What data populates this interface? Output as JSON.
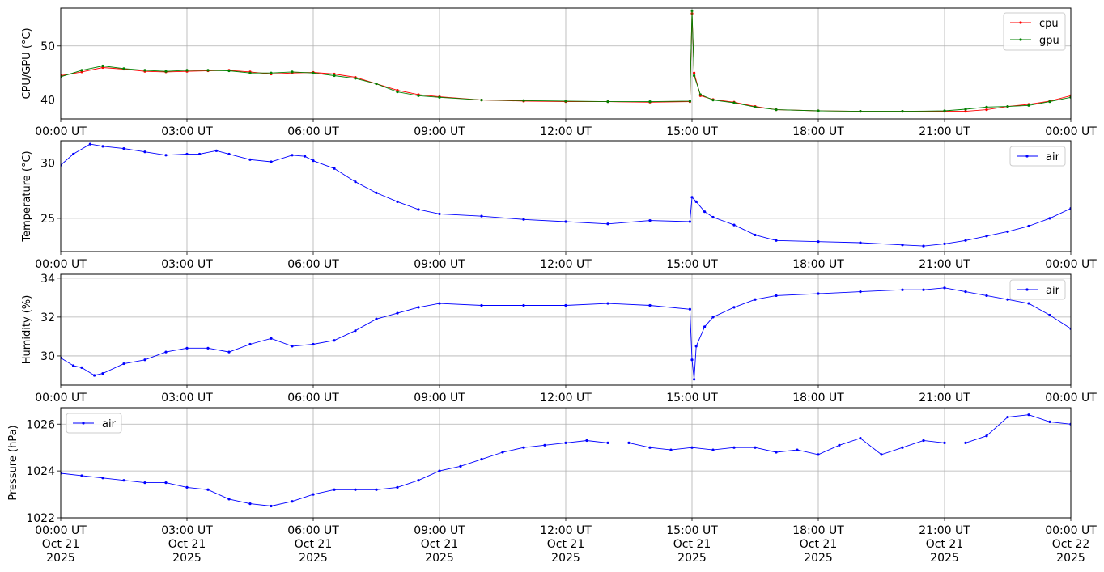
{
  "chart_data": [
    {
      "type": "line",
      "ylabel": "CPU/GPU (°C)",
      "ylim": [
        36.5,
        57
      ],
      "yticks": [
        40,
        50
      ],
      "grid": true,
      "legend": "top-right",
      "x_ticks": [
        "00:00 UT",
        "03:00 UT",
        "06:00 UT",
        "09:00 UT",
        "12:00 UT",
        "15:00 UT",
        "18:00 UT",
        "21:00 UT",
        "00:00 UT"
      ],
      "series": [
        {
          "name": "cpu",
          "color": "#ff0000",
          "x": [
            0,
            0.5,
            1,
            1.5,
            2,
            2.5,
            3,
            3.5,
            4,
            4.5,
            5,
            5.5,
            6,
            6.5,
            7,
            7.5,
            8,
            8.5,
            9,
            10,
            11,
            12,
            13,
            14,
            14.95,
            15.0,
            15.05,
            15.2,
            15.5,
            16,
            16.5,
            17,
            18,
            19,
            20,
            21,
            21.5,
            22,
            22.5,
            23,
            23.5,
            24
          ],
          "y": [
            44.5,
            45.2,
            46.0,
            45.7,
            45.3,
            45.2,
            45.3,
            45.4,
            45.5,
            45.2,
            44.8,
            45.0,
            45.1,
            44.8,
            44.2,
            43.0,
            41.8,
            41.0,
            40.6,
            40.0,
            39.8,
            39.7,
            39.7,
            39.6,
            39.7,
            56.0,
            45.0,
            40.8,
            40.1,
            39.6,
            38.8,
            38.2,
            38.0,
            37.9,
            37.9,
            37.9,
            37.9,
            38.2,
            38.8,
            39.2,
            39.8,
            40.8
          ]
        },
        {
          "name": "gpu",
          "color": "#008000",
          "x": [
            0,
            0.5,
            1,
            1.5,
            2,
            2.5,
            3,
            3.5,
            4,
            4.5,
            5,
            5.5,
            6,
            6.5,
            7,
            7.5,
            8,
            8.5,
            9,
            10,
            11,
            12,
            13,
            14,
            14.95,
            15.0,
            15.05,
            15.2,
            15.5,
            16,
            16.5,
            17,
            18,
            19,
            20,
            21,
            21.5,
            22,
            22.5,
            23,
            23.5,
            24
          ],
          "y": [
            44.3,
            45.5,
            46.3,
            45.8,
            45.5,
            45.3,
            45.5,
            45.5,
            45.4,
            45.0,
            45.0,
            45.2,
            45.0,
            44.5,
            44.0,
            43.0,
            41.5,
            40.8,
            40.5,
            40.0,
            39.9,
            39.8,
            39.7,
            39.7,
            39.8,
            56.5,
            44.5,
            41.0,
            40.0,
            39.5,
            38.7,
            38.2,
            38.0,
            37.9,
            37.9,
            38.0,
            38.3,
            38.7,
            38.8,
            39.0,
            39.7,
            40.5
          ]
        }
      ]
    },
    {
      "type": "line",
      "ylabel": "Temperature (°C)",
      "ylim": [
        22,
        32
      ],
      "yticks": [
        25,
        30
      ],
      "grid": true,
      "legend": "top-right",
      "x_ticks": [
        "00:00 UT",
        "03:00 UT",
        "06:00 UT",
        "09:00 UT",
        "12:00 UT",
        "15:00 UT",
        "18:00 UT",
        "21:00 UT",
        "00:00 UT"
      ],
      "series": [
        {
          "name": "air",
          "color": "#0000ff",
          "x": [
            0,
            0.3,
            0.7,
            1,
            1.5,
            2,
            2.5,
            3,
            3.3,
            3.7,
            4,
            4.5,
            5,
            5.5,
            5.8,
            6,
            6.5,
            7,
            7.5,
            8,
            8.5,
            9,
            10,
            11,
            12,
            13,
            14,
            14.95,
            15.0,
            15.1,
            15.3,
            15.5,
            16,
            16.5,
            17,
            18,
            19,
            20,
            20.5,
            21,
            21.5,
            22,
            22.5,
            23,
            23.5,
            24
          ],
          "y": [
            29.8,
            30.8,
            31.7,
            31.5,
            31.3,
            31.0,
            30.7,
            30.8,
            30.8,
            31.1,
            30.8,
            30.3,
            30.1,
            30.7,
            30.6,
            30.2,
            29.5,
            28.3,
            27.3,
            26.5,
            25.8,
            25.4,
            25.2,
            24.9,
            24.7,
            24.5,
            24.8,
            24.7,
            26.9,
            26.5,
            25.6,
            25.1,
            24.4,
            23.5,
            23.0,
            22.9,
            22.8,
            22.6,
            22.5,
            22.7,
            23.0,
            23.4,
            23.8,
            24.3,
            25.0,
            25.9
          ]
        }
      ]
    },
    {
      "type": "line",
      "ylabel": "Humidity (%)",
      "ylim": [
        28.5,
        34.2
      ],
      "yticks": [
        30,
        32,
        34
      ],
      "grid": true,
      "legend": "top-right",
      "x_ticks": [
        "00:00 UT",
        "03:00 UT",
        "06:00 UT",
        "09:00 UT",
        "12:00 UT",
        "15:00 UT",
        "18:00 UT",
        "21:00 UT",
        "00:00 UT"
      ],
      "series": [
        {
          "name": "air",
          "color": "#0000ff",
          "x": [
            0,
            0.3,
            0.5,
            0.8,
            1,
            1.5,
            2,
            2.5,
            3,
            3.5,
            4,
            4.5,
            5,
            5.5,
            6,
            6.5,
            7,
            7.5,
            8,
            8.5,
            9,
            10,
            11,
            12,
            13,
            14,
            14.95,
            15.0,
            15.05,
            15.1,
            15.3,
            15.5,
            16,
            16.5,
            17,
            18,
            19,
            20,
            20.5,
            21,
            21.5,
            22,
            22.5,
            23,
            23.5,
            24
          ],
          "y": [
            29.9,
            29.5,
            29.4,
            29.0,
            29.1,
            29.6,
            29.8,
            30.2,
            30.4,
            30.4,
            30.2,
            30.6,
            30.9,
            30.5,
            30.6,
            30.8,
            31.3,
            31.9,
            32.2,
            32.5,
            32.7,
            32.6,
            32.6,
            32.6,
            32.7,
            32.6,
            32.4,
            29.8,
            28.8,
            30.5,
            31.5,
            32.0,
            32.5,
            32.9,
            33.1,
            33.2,
            33.3,
            33.4,
            33.4,
            33.5,
            33.3,
            33.1,
            32.9,
            32.7,
            32.1,
            31.4
          ]
        }
      ]
    },
    {
      "type": "line",
      "ylabel": "Pressure (hPa)",
      "ylim": [
        1022,
        1026.7
      ],
      "yticks": [
        1022,
        1024,
        1026
      ],
      "grid": true,
      "legend": "top-left",
      "x_ticks": [
        "00:00 UT\nOct 21\n2025",
        "03:00 UT\nOct 21\n2025",
        "06:00 UT\nOct 21\n2025",
        "09:00 UT\nOct 21\n2025",
        "12:00 UT\nOct 21\n2025",
        "15:00 UT\nOct 21\n2025",
        "18:00 UT\nOct 21\n2025",
        "21:00 UT\nOct 21\n2025",
        "00:00 UT\nOct 22\n2025"
      ],
      "series": [
        {
          "name": "air",
          "color": "#0000ff",
          "x": [
            0,
            0.5,
            1,
            1.5,
            2,
            2.5,
            3,
            3.5,
            4,
            4.5,
            5,
            5.5,
            6,
            6.5,
            7,
            7.5,
            8,
            8.5,
            9,
            9.5,
            10,
            10.5,
            11,
            11.5,
            12,
            12.5,
            13,
            13.5,
            14,
            14.5,
            15,
            15.5,
            16,
            16.5,
            17,
            17.5,
            18,
            18.5,
            19,
            19.5,
            20,
            20.5,
            21,
            21.5,
            22,
            22.5,
            23,
            23.5,
            24
          ],
          "y": [
            1023.9,
            1023.8,
            1023.7,
            1023.6,
            1023.5,
            1023.5,
            1023.3,
            1023.2,
            1022.8,
            1022.6,
            1022.5,
            1022.7,
            1023.0,
            1023.2,
            1023.2,
            1023.2,
            1023.3,
            1023.6,
            1024.0,
            1024.2,
            1024.5,
            1024.8,
            1025.0,
            1025.1,
            1025.2,
            1025.3,
            1025.2,
            1025.2,
            1025.0,
            1024.9,
            1025.0,
            1024.9,
            1025.0,
            1025.0,
            1024.8,
            1024.9,
            1024.7,
            1025.1,
            1025.4,
            1024.7,
            1025.0,
            1025.3,
            1025.2,
            1025.2,
            1025.5,
            1026.3,
            1026.4,
            1026.1,
            1026.0
          ]
        }
      ]
    }
  ]
}
